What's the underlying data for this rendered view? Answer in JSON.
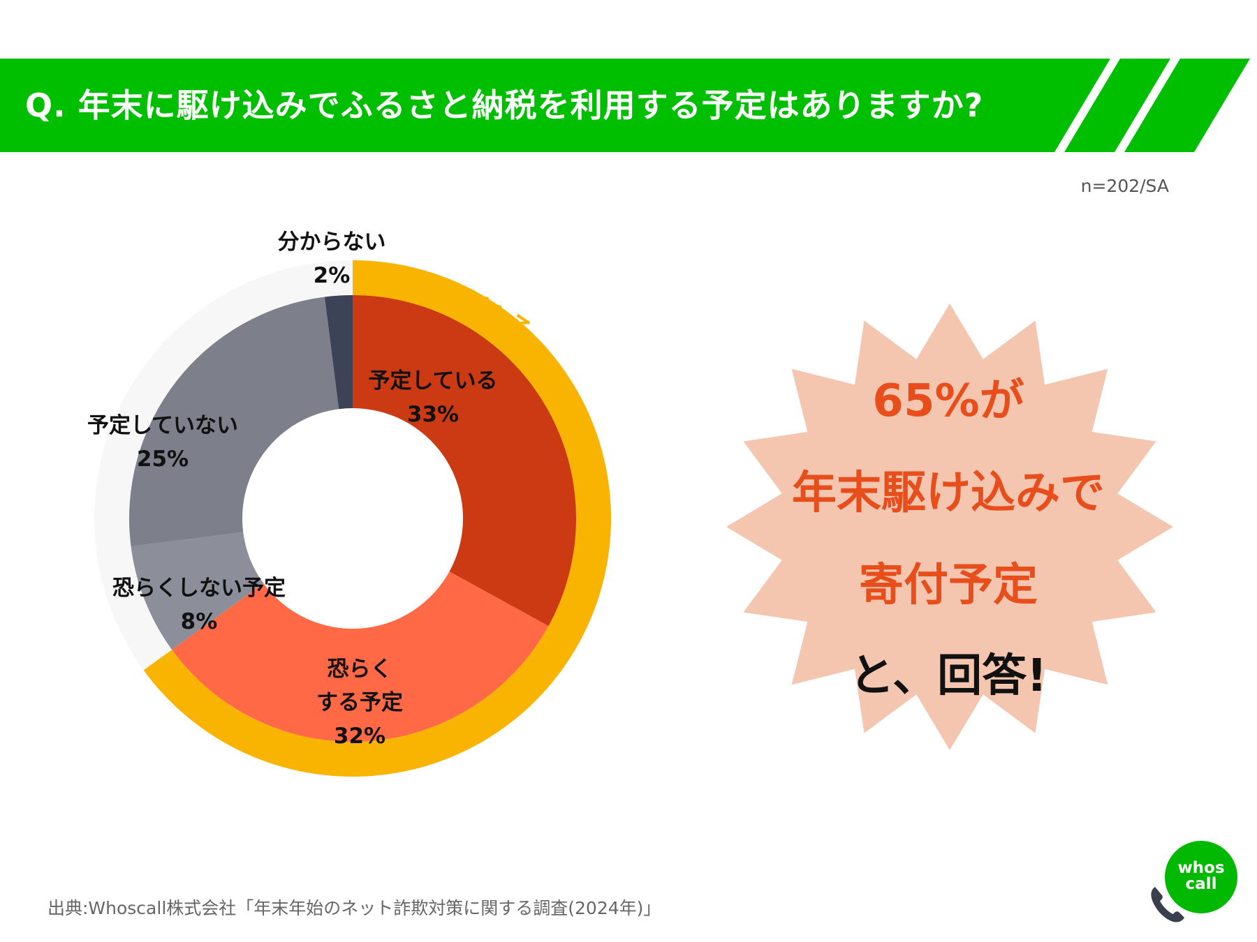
{
  "header": {
    "question": "Q. 年末に駆け込みでふるさと納税を利用する予定はありますか?",
    "color": "#00be00"
  },
  "sample_note": "n=202/SA",
  "chart_data": {
    "type": "pie",
    "title": "",
    "categories": [
      "予定している",
      "恐らくする予定",
      "恐らくしない予定",
      "予定していない",
      "分からない"
    ],
    "values": [
      33,
      32,
      8,
      25,
      2
    ],
    "labels": [
      {
        "name": [
          "予定している"
        ],
        "pct": "33%"
      },
      {
        "name": [
          "恐らく",
          "する予定"
        ],
        "pct": "32%"
      },
      {
        "name": [
          "恐らくしない予定"
        ],
        "pct": "8%"
      },
      {
        "name": [
          "予定していない"
        ],
        "pct": "25%"
      },
      {
        "name": [
          "分からない"
        ],
        "pct": "2%"
      }
    ],
    "colors": [
      "#cc3a14",
      "#ff6945",
      "#8c8e99",
      "#7d7f8a",
      "#3d4356"
    ],
    "outer_ring": {
      "label": "予定している",
      "value": 65,
      "color": "#f8b400",
      "track_color": "#f7f7f7"
    }
  },
  "callout": {
    "lines": [
      "65%が",
      "年末駆け込みで",
      "寄付予定",
      "と、回答!"
    ],
    "accent_color": "#e84e1b",
    "burst_color": "#f4c6b0"
  },
  "source": "出典:Whoscall株式会社「年末年始のネット詐欺対策に関する調査(2024年)」",
  "logo": {
    "line1": "whos",
    "line2": "call",
    "icon": "phone-icon"
  }
}
